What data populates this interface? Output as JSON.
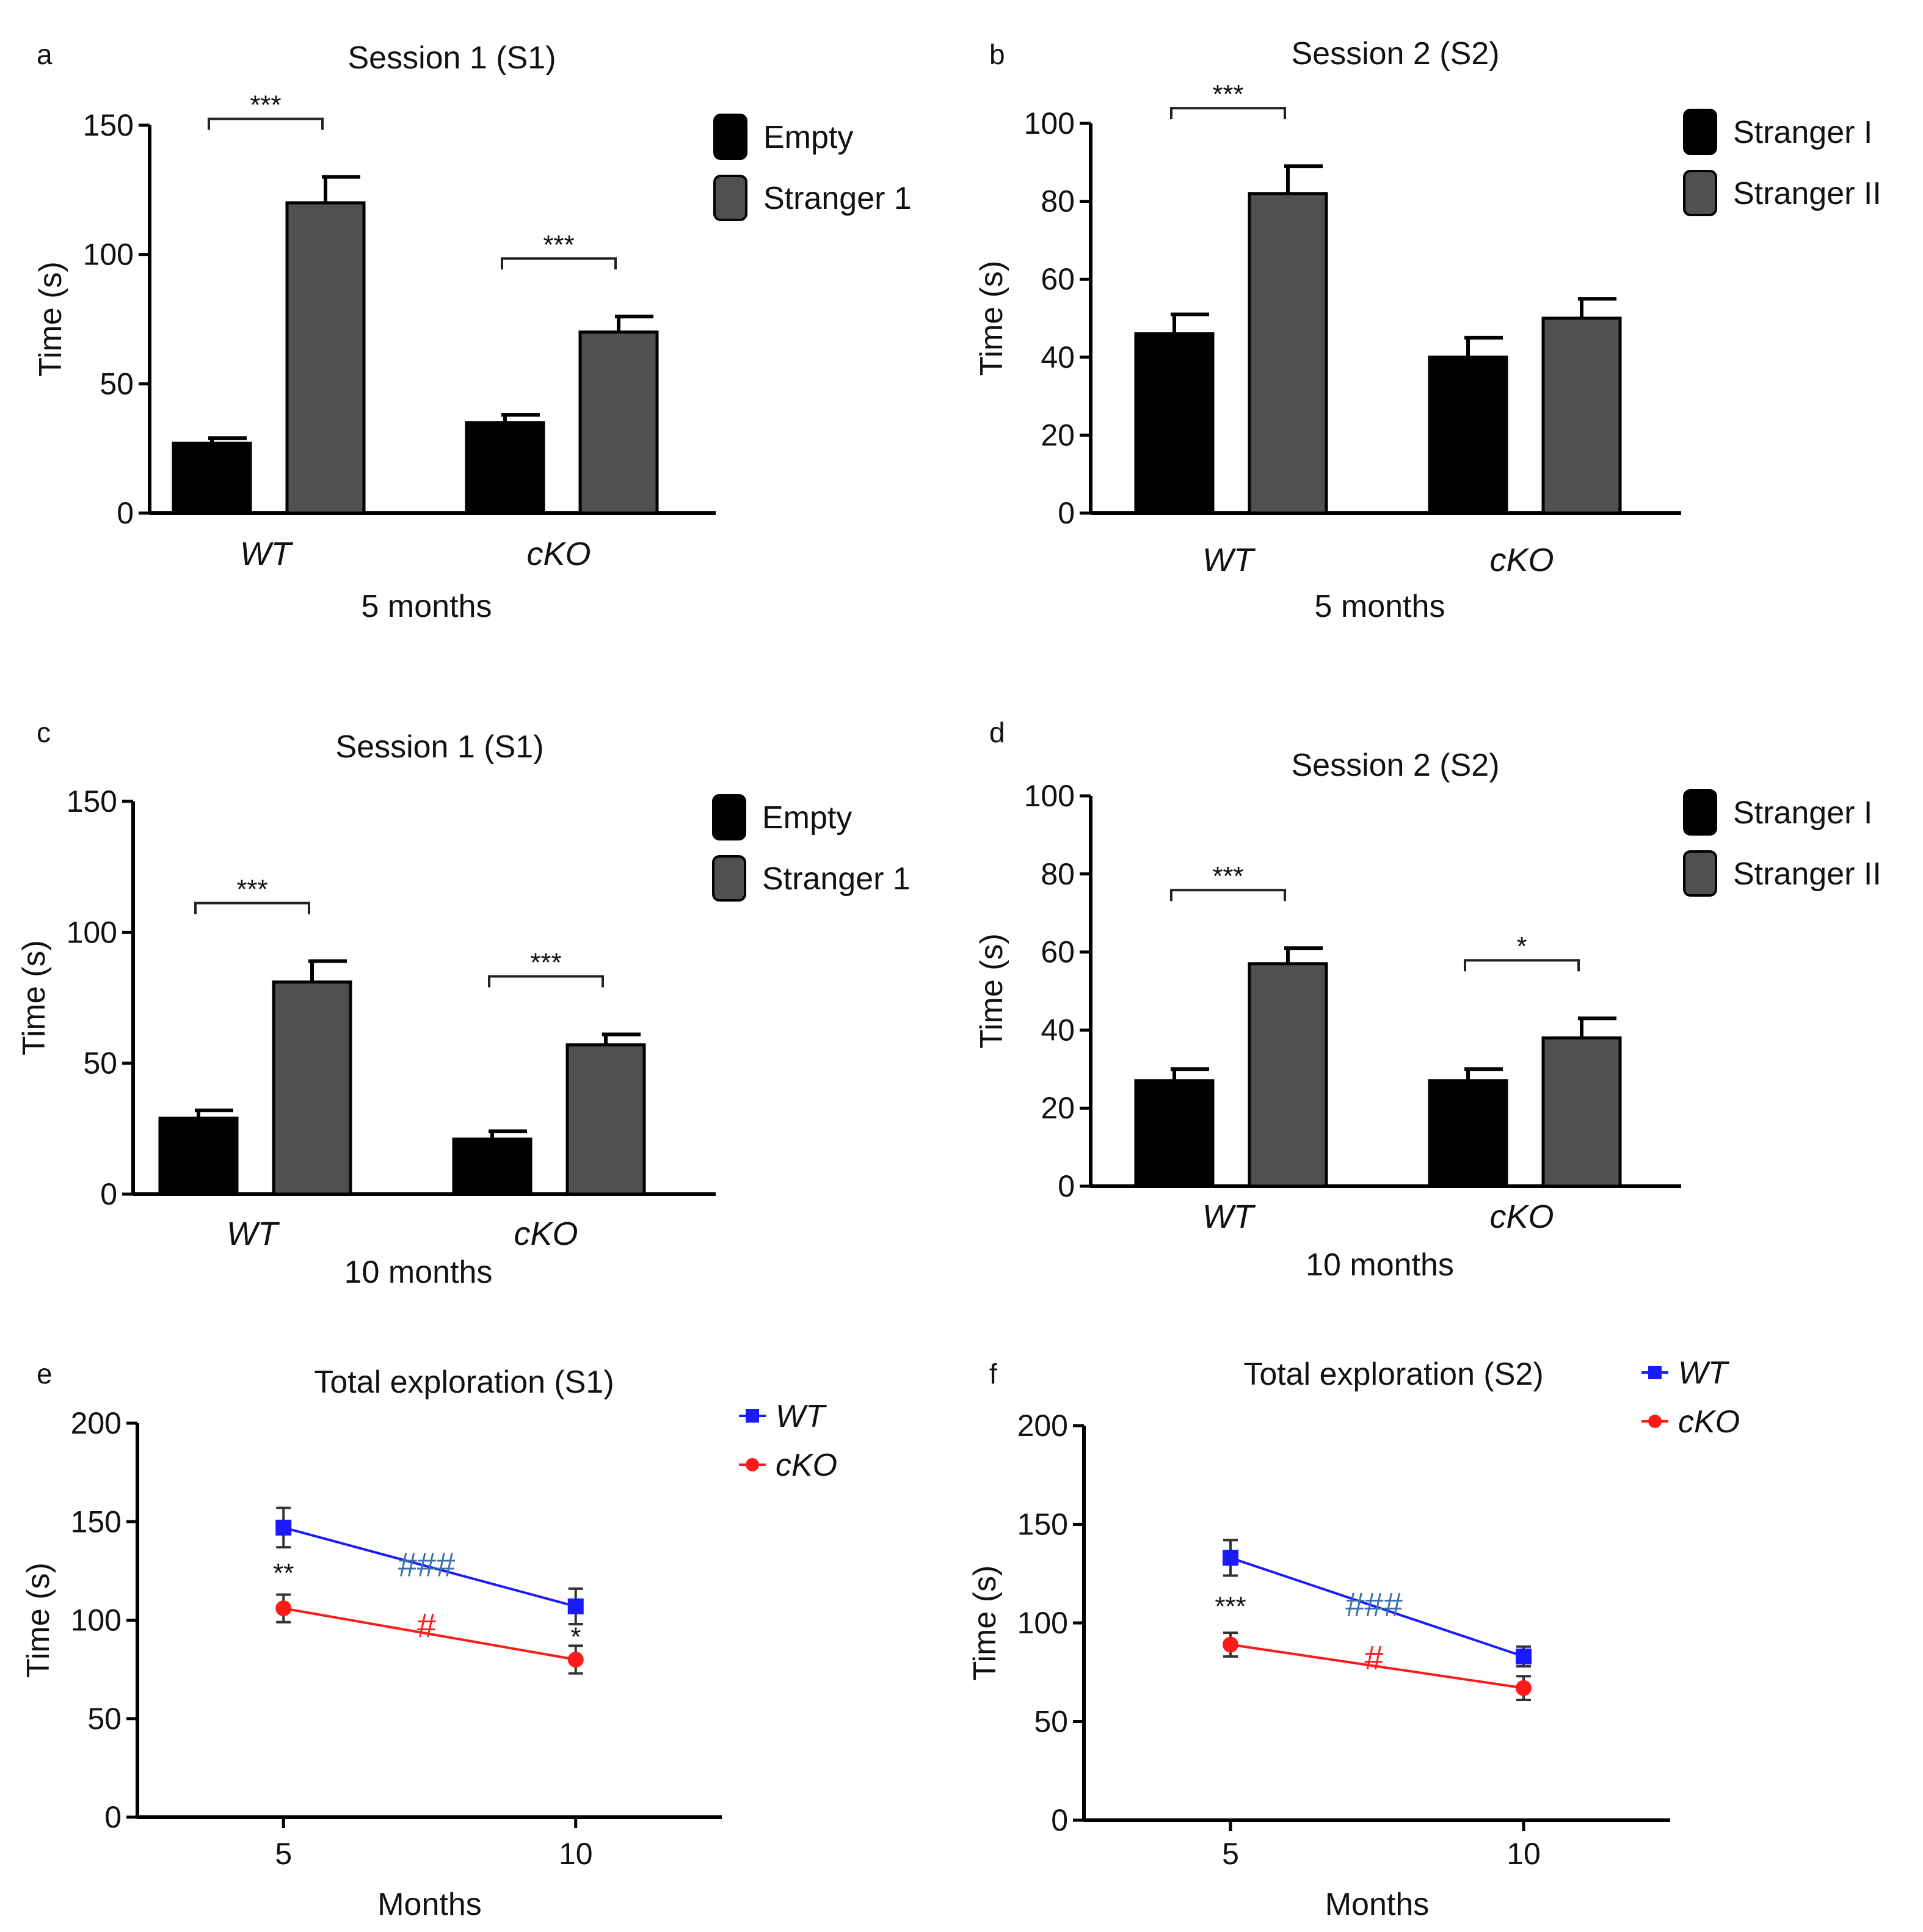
{
  "colors": {
    "dark": "#000000",
    "gray": "#505050",
    "darkgray": "#2e2e2e",
    "wt": "#1a1aff",
    "cko": "#ff1a1a",
    "wt_hash": "#3a6fb0",
    "cko_hash": "#ff1a1a"
  },
  "chart_data": [
    {
      "panel": "a",
      "type": "bar",
      "title": "Session 1 (S1)",
      "ylabel": "Time (s)",
      "xlabel": "5 months",
      "ylim": [
        0,
        150
      ],
      "yticks": [
        0,
        50,
        100,
        150
      ],
      "categories": [
        "WT",
        "cKO"
      ],
      "series": [
        {
          "name": "Empty",
          "values": [
            27,
            35
          ],
          "errors": [
            2,
            3
          ],
          "color": "dark"
        },
        {
          "name": "Stranger 1",
          "values": [
            120,
            70
          ],
          "errors": [
            10,
            6
          ],
          "color": "gray"
        }
      ],
      "significance": [
        "***",
        "***"
      ]
    },
    {
      "panel": "b",
      "type": "bar",
      "title": "Session 2 (S2)",
      "ylabel": "Time (s)",
      "xlabel": "5 months",
      "ylim": [
        0,
        100
      ],
      "yticks": [
        0,
        20,
        40,
        60,
        80,
        100
      ],
      "categories": [
        "WT",
        "cKO"
      ],
      "series": [
        {
          "name": "Stranger I",
          "values": [
            46,
            40
          ],
          "errors": [
            5,
            5
          ],
          "color": "dark"
        },
        {
          "name": "Stranger II",
          "values": [
            82,
            50
          ],
          "errors": [
            7,
            5
          ],
          "color": "gray"
        }
      ],
      "significance": [
        "***",
        ""
      ]
    },
    {
      "panel": "c",
      "type": "bar",
      "title": "Session 1 (S1)",
      "ylabel": "Time (s)",
      "xlabel": "10 months",
      "ylim": [
        0,
        150
      ],
      "yticks": [
        0,
        50,
        100,
        150
      ],
      "categories": [
        "WT",
        "cKO"
      ],
      "series": [
        {
          "name": "Empty",
          "values": [
            29,
            21
          ],
          "errors": [
            3,
            3
          ],
          "color": "dark"
        },
        {
          "name": "Stranger 1",
          "values": [
            81,
            57
          ],
          "errors": [
            8,
            4
          ],
          "color": "gray"
        }
      ],
      "significance": [
        "***",
        "***"
      ]
    },
    {
      "panel": "d",
      "type": "bar",
      "title": "Session 2 (S2)",
      "ylabel": "Time (s)",
      "xlabel": "10 months",
      "ylim": [
        0,
        100
      ],
      "yticks": [
        0,
        20,
        40,
        60,
        80,
        100
      ],
      "categories": [
        "WT",
        "cKO"
      ],
      "series": [
        {
          "name": "Stranger I",
          "values": [
            27,
            27
          ],
          "errors": [
            3,
            3
          ],
          "color": "dark"
        },
        {
          "name": "Stranger II",
          "values": [
            57,
            38
          ],
          "errors": [
            4,
            5
          ],
          "color": "gray"
        }
      ],
      "significance": [
        "***",
        "*"
      ]
    },
    {
      "panel": "e",
      "type": "line",
      "title": "Total exploration (S1)",
      "ylabel": "Time (s)",
      "xlabel": "Months",
      "ylim": [
        0,
        200
      ],
      "yticks": [
        0,
        50,
        100,
        150,
        200
      ],
      "xlim": [
        2.5,
        12.5
      ],
      "x": [
        5,
        10
      ],
      "xticks": [
        5,
        10
      ],
      "series": [
        {
          "name": "WT",
          "values": [
            147,
            107
          ],
          "errors": [
            10,
            9
          ],
          "color": "wt",
          "marker": "square"
        },
        {
          "name": "cKO",
          "values": [
            106,
            80
          ],
          "errors": [
            7,
            7
          ],
          "color": "cko",
          "marker": "circle"
        }
      ],
      "point_stars": [
        {
          "x": 5,
          "text": "**"
        },
        {
          "x": 10,
          "text": "*"
        }
      ],
      "hashes": [
        {
          "text": "###",
          "series": "WT",
          "x": 7.5
        },
        {
          "text": "#",
          "series": "cKO",
          "x": 7.5
        }
      ],
      "legend_position": "top-right"
    },
    {
      "panel": "f",
      "type": "line",
      "title": "Total exploration (S2)",
      "ylabel": "Time (s)",
      "xlabel": "Months",
      "ylim": [
        0,
        200
      ],
      "yticks": [
        0,
        50,
        100,
        150,
        200
      ],
      "xlim": [
        2.5,
        12.5
      ],
      "x": [
        5,
        10
      ],
      "xticks": [
        5,
        10
      ],
      "series": [
        {
          "name": "WT",
          "values": [
            133,
            83
          ],
          "errors": [
            9,
            5
          ],
          "color": "wt",
          "marker": "square"
        },
        {
          "name": "cKO",
          "values": [
            89,
            67
          ],
          "errors": [
            6,
            6
          ],
          "color": "cko",
          "marker": "circle"
        }
      ],
      "point_stars": [
        {
          "x": 5,
          "text": "***"
        }
      ],
      "hashes": [
        {
          "text": "###",
          "series": "WT",
          "x": 7.5
        },
        {
          "text": "#",
          "series": "cKO",
          "x": 7.5
        }
      ],
      "legend_position": "top-right"
    }
  ]
}
